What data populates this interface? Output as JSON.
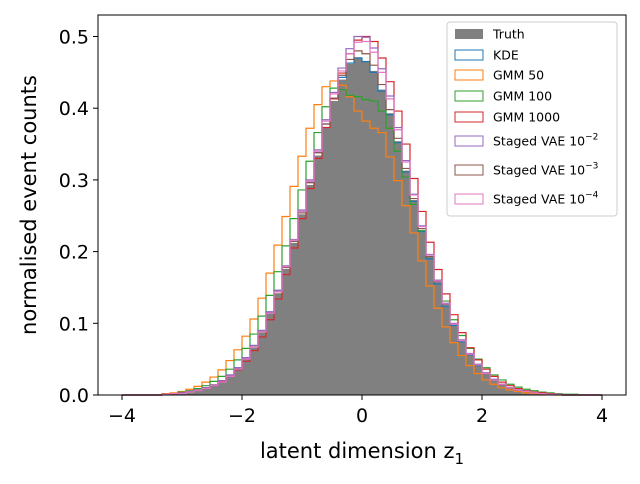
{
  "chart_data": {
    "type": "histogram",
    "xlabel": "latent dimension z",
    "xlabel_subscript": "1",
    "ylabel": "normalised event counts",
    "xlim": [
      -4.4,
      4.4
    ],
    "ylim": [
      0,
      0.53
    ],
    "xticks": [
      -4,
      -2,
      0,
      2,
      4
    ],
    "yticks": [
      0.0,
      0.1,
      0.2,
      0.3,
      0.4,
      0.5
    ],
    "ytick_labels": [
      "0.0",
      "0.1",
      "0.2",
      "0.3",
      "0.4",
      "0.5"
    ],
    "legend_position": "upper right",
    "bin_range": [
      -4,
      4
    ],
    "bin_count": 60,
    "truth": {
      "name": "Truth",
      "color": "#808080",
      "values": [
        0,
        0,
        0,
        0,
        0,
        0.001,
        0.002,
        0.002,
        0.004,
        0.006,
        0.009,
        0.013,
        0.018,
        0.026,
        0.036,
        0.05,
        0.066,
        0.087,
        0.113,
        0.142,
        0.176,
        0.212,
        0.252,
        0.293,
        0.334,
        0.374,
        0.41,
        0.44,
        0.462,
        0.471,
        0.466,
        0.452,
        0.426,
        0.393,
        0.354,
        0.313,
        0.272,
        0.23,
        0.192,
        0.157,
        0.125,
        0.098,
        0.075,
        0.057,
        0.042,
        0.03,
        0.021,
        0.015,
        0.01,
        0.007,
        0.005,
        0.003,
        0.002,
        0.001,
        0.001,
        0,
        0,
        0,
        0,
        0
      ]
    },
    "series": [
      {
        "name": "KDE",
        "color": "#1f77b4",
        "values": [
          0,
          0,
          0,
          0,
          0,
          0.001,
          0.002,
          0.003,
          0.005,
          0.007,
          0.01,
          0.014,
          0.02,
          0.028,
          0.038,
          0.052,
          0.069,
          0.09,
          0.116,
          0.146,
          0.18,
          0.216,
          0.256,
          0.297,
          0.338,
          0.378,
          0.414,
          0.443,
          0.463,
          0.47,
          0.465,
          0.45,
          0.424,
          0.391,
          0.352,
          0.311,
          0.27,
          0.228,
          0.19,
          0.155,
          0.124,
          0.097,
          0.074,
          0.056,
          0.041,
          0.03,
          0.021,
          0.015,
          0.01,
          0.007,
          0.005,
          0.003,
          0.002,
          0.001,
          0.001,
          0,
          0,
          0,
          0,
          0
        ]
      },
      {
        "name": "GMM 50",
        "color": "#ff7f0e",
        "values": [
          0,
          0,
          0,
          0,
          0,
          0.002,
          0.003,
          0.005,
          0.008,
          0.012,
          0.018,
          0.025,
          0.035,
          0.048,
          0.063,
          0.082,
          0.106,
          0.135,
          0.17,
          0.209,
          0.249,
          0.291,
          0.333,
          0.372,
          0.405,
          0.43,
          0.438,
          0.432,
          0.416,
          0.396,
          0.382,
          0.372,
          0.366,
          0.332,
          0.299,
          0.264,
          0.226,
          0.187,
          0.152,
          0.121,
          0.095,
          0.073,
          0.055,
          0.041,
          0.03,
          0.021,
          0.015,
          0.01,
          0.007,
          0.005,
          0.003,
          0.002,
          0.001,
          0.001,
          0,
          0,
          0,
          0,
          0,
          0
        ]
      },
      {
        "name": "GMM 100",
        "color": "#2ca02c",
        "values": [
          0,
          0,
          0,
          0,
          0,
          0.001,
          0.002,
          0.004,
          0.006,
          0.009,
          0.013,
          0.019,
          0.026,
          0.036,
          0.049,
          0.065,
          0.085,
          0.11,
          0.139,
          0.172,
          0.208,
          0.246,
          0.286,
          0.326,
          0.366,
          0.402,
          0.428,
          0.426,
          0.418,
          0.416,
          0.412,
          0.41,
          0.396,
          0.372,
          0.34,
          0.304,
          0.266,
          0.229,
          0.193,
          0.16,
          0.131,
          0.105,
          0.083,
          0.065,
          0.05,
          0.038,
          0.028,
          0.021,
          0.015,
          0.011,
          0.008,
          0.006,
          0.004,
          0.003,
          0.002,
          0.001,
          0.001,
          0,
          0,
          0
        ]
      },
      {
        "name": "GMM 1000",
        "color": "#d62728",
        "values": [
          0,
          0,
          0,
          0,
          0,
          0.001,
          0.002,
          0.003,
          0.005,
          0.007,
          0.01,
          0.014,
          0.019,
          0.026,
          0.035,
          0.047,
          0.062,
          0.081,
          0.105,
          0.134,
          0.168,
          0.205,
          0.246,
          0.288,
          0.33,
          0.373,
          0.413,
          0.449,
          0.476,
          0.495,
          0.5,
          0.493,
          0.47,
          0.437,
          0.396,
          0.35,
          0.302,
          0.256,
          0.213,
          0.175,
          0.141,
          0.112,
          0.087,
          0.066,
          0.049,
          0.036,
          0.026,
          0.018,
          0.013,
          0.009,
          0.006,
          0.004,
          0.003,
          0.002,
          0.001,
          0,
          0,
          0,
          0,
          0
        ]
      },
      {
        "name": "Staged VAE",
        "exponent": "−2",
        "color": "#9467bd",
        "values": [
          0,
          0,
          0,
          0,
          0,
          0.001,
          0.002,
          0.003,
          0.005,
          0.007,
          0.01,
          0.014,
          0.02,
          0.028,
          0.038,
          0.052,
          0.069,
          0.09,
          0.116,
          0.146,
          0.18,
          0.217,
          0.258,
          0.3,
          0.342,
          0.384,
          0.422,
          0.456,
          0.483,
          0.5,
          0.499,
          0.484,
          0.455,
          0.417,
          0.373,
          0.327,
          0.28,
          0.236,
          0.196,
          0.16,
          0.128,
          0.1,
          0.077,
          0.058,
          0.043,
          0.031,
          0.022,
          0.015,
          0.01,
          0.007,
          0.005,
          0.003,
          0.002,
          0.001,
          0.001,
          0,
          0,
          0,
          0,
          0
        ]
      },
      {
        "name": "Staged VAE",
        "exponent": "−3",
        "color": "#8c564b",
        "values": [
          0,
          0,
          0,
          0,
          0,
          0.001,
          0.002,
          0.002,
          0.004,
          0.006,
          0.009,
          0.013,
          0.018,
          0.026,
          0.036,
          0.05,
          0.067,
          0.088,
          0.114,
          0.144,
          0.178,
          0.214,
          0.254,
          0.296,
          0.338,
          0.378,
          0.414,
          0.446,
          0.468,
          0.48,
          0.476,
          0.46,
          0.433,
          0.398,
          0.358,
          0.316,
          0.274,
          0.232,
          0.193,
          0.158,
          0.126,
          0.099,
          0.076,
          0.057,
          0.042,
          0.03,
          0.021,
          0.015,
          0.01,
          0.007,
          0.005,
          0.003,
          0.002,
          0.001,
          0.001,
          0,
          0,
          0,
          0,
          0
        ]
      },
      {
        "name": "Staged VAE",
        "exponent": "−4",
        "color": "#e377c2",
        "values": [
          0,
          0,
          0,
          0,
          0,
          0.001,
          0.002,
          0.002,
          0.004,
          0.006,
          0.009,
          0.013,
          0.018,
          0.026,
          0.036,
          0.05,
          0.067,
          0.088,
          0.114,
          0.144,
          0.179,
          0.216,
          0.256,
          0.298,
          0.34,
          0.382,
          0.42,
          0.452,
          0.476,
          0.492,
          0.493,
          0.478,
          0.45,
          0.413,
          0.37,
          0.325,
          0.279,
          0.235,
          0.195,
          0.159,
          0.127,
          0.099,
          0.076,
          0.057,
          0.042,
          0.03,
          0.021,
          0.015,
          0.01,
          0.007,
          0.005,
          0.003,
          0.002,
          0.001,
          0.001,
          0,
          0,
          0,
          0,
          0
        ]
      }
    ]
  }
}
